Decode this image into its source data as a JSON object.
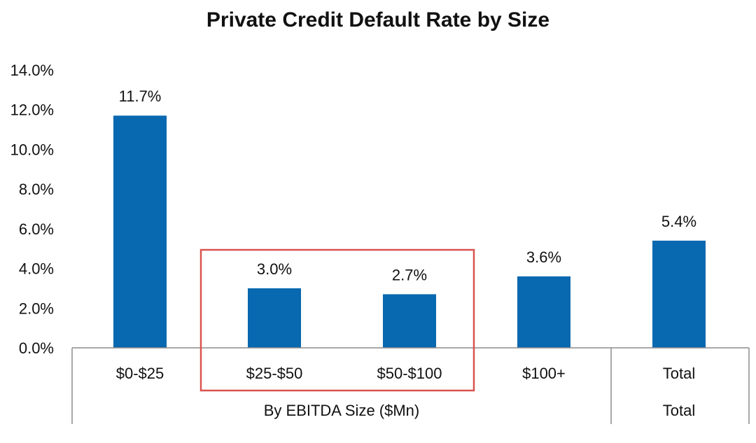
{
  "chart_data": {
    "type": "bar",
    "title": "Private Credit Default Rate by Size",
    "categories": [
      "$0-$25",
      "$25-$50",
      "$50-$100",
      "$100+",
      "Total"
    ],
    "values": [
      11.7,
      3.0,
      2.7,
      3.6,
      5.4
    ],
    "value_labels": [
      "11.7%",
      "3.0%",
      "2.7%",
      "3.6%",
      "5.4%"
    ],
    "ylim": [
      0,
      14
    ],
    "yticks": [
      0,
      2,
      4,
      6,
      8,
      10,
      12,
      14
    ],
    "ytick_labels": [
      "0.0%",
      "2.0%",
      "4.0%",
      "6.0%",
      "8.0%",
      "10.0%",
      "12.0%",
      "14.0%"
    ],
    "groups": [
      {
        "label": "By EBITDA Size ($Mn)",
        "categories": [
          "$0-$25",
          "$25-$50",
          "$50-$100",
          "$100+"
        ]
      },
      {
        "label": "Total",
        "categories": [
          "Total"
        ]
      }
    ],
    "highlight": {
      "categories": [
        "$25-$50",
        "$50-$100"
      ],
      "color": "#d9534f"
    },
    "bar_color": "#0868b0",
    "grid": false,
    "legend": "none"
  }
}
